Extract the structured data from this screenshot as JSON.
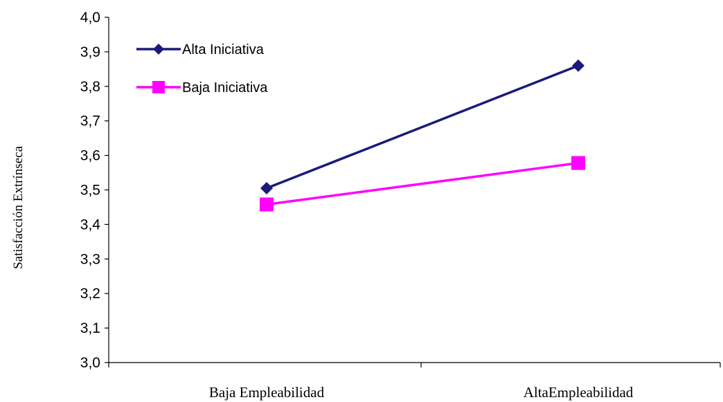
{
  "chart_data": {
    "type": "line",
    "title": "",
    "xlabel": "",
    "ylabel": "Satisfacción Extrínseca",
    "categories": [
      "Baja Empleabilidad",
      "AltaEmpleabilidad"
    ],
    "ylim": [
      3.0,
      4.0
    ],
    "yticks": [
      "3,0",
      "3,1",
      "3,2",
      "3,3",
      "3,4",
      "3,5",
      "3,6",
      "3,7",
      "3,8",
      "3,9",
      "4,0"
    ],
    "grid": false,
    "legend_position": "top-left",
    "series": [
      {
        "name": "Alta Iniciativa",
        "values": [
          3.505,
          3.86
        ],
        "color": "#1a1a7a",
        "marker": "diamond"
      },
      {
        "name": "Baja Iniciativa",
        "values": [
          3.458,
          3.578
        ],
        "color": "#ff00ff",
        "marker": "square"
      }
    ]
  }
}
